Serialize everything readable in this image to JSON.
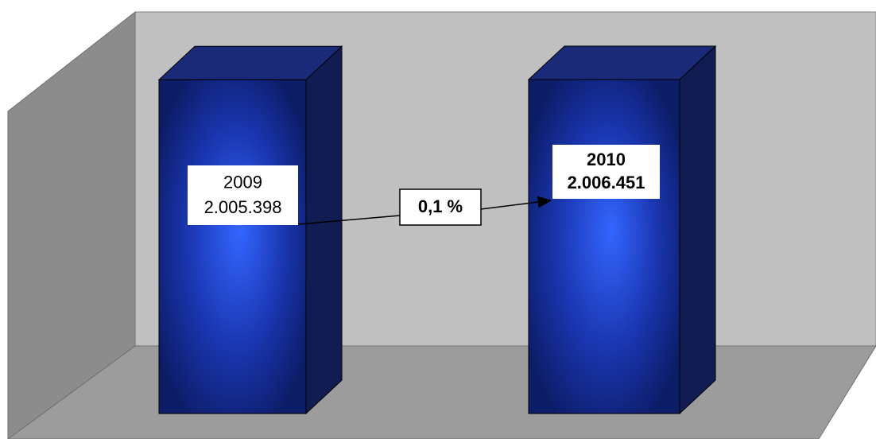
{
  "chart_data": {
    "type": "bar3d",
    "categories": [
      "2009",
      "2010"
    ],
    "values": [
      2005398,
      2006451
    ],
    "value_labels": [
      "2.005.398",
      "2.006.451"
    ],
    "color": "#2f5cf0",
    "annotation": "0,1 %"
  }
}
